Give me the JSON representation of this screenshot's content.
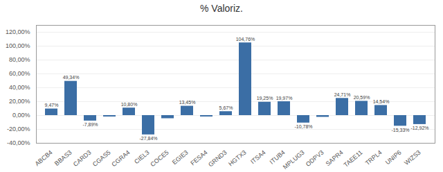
{
  "chart_data": {
    "type": "bar",
    "title": "% Valoriz.",
    "categories": [
      "ABCB4",
      "BBAS3",
      "CARD3",
      "CGAS5",
      "CGRA4",
      "CIEL3",
      "COCE5",
      "EGIE3",
      "FESA4",
      "GRND3",
      "HGTX3",
      "ITSA4",
      "ITUB4",
      "MPLUG3",
      "ODPV3",
      "SAPR4",
      "TAEE11",
      "TRPL4",
      "UNIP6",
      "WIZS3"
    ],
    "values": [
      9.47,
      49.34,
      -7.89,
      -2.0,
      10.8,
      -27.84,
      -4.5,
      13.45,
      -1.97,
      5.67,
      104.76,
      19.25,
      19.97,
      -10.78,
      -2.5,
      24.71,
      20.59,
      14.54,
      -15.33,
      -12.92
    ],
    "value_labels": [
      "9,47%",
      "49,34%",
      "-7,89%",
      null,
      "10,80%",
      "-27,84%",
      null,
      "13,45%",
      null,
      "5,67%",
      "104,76%",
      "19,25%",
      "19,97%",
      "-10,78%",
      null,
      "24,71%",
      "20,59%",
      "14,54%",
      "-15,33%",
      "-12,92%"
    ],
    "data_labels": true,
    "color": "#3B6EA5",
    "ylim": [
      -40,
      130
    ],
    "yticks": [
      {
        "value": -40,
        "label": "-40,00%"
      },
      {
        "value": -20,
        "label": "-20,00%"
      },
      {
        "value": 0,
        "label": "0,00%"
      },
      {
        "value": 20,
        "label": "20,00%"
      },
      {
        "value": 40,
        "label": "40,00%"
      },
      {
        "value": 60,
        "label": "60,00%"
      },
      {
        "value": 80,
        "label": "80,00%"
      },
      {
        "value": 100,
        "label": "100,00%"
      },
      {
        "value": 120,
        "label": "120,00%"
      }
    ],
    "grid": true
  }
}
